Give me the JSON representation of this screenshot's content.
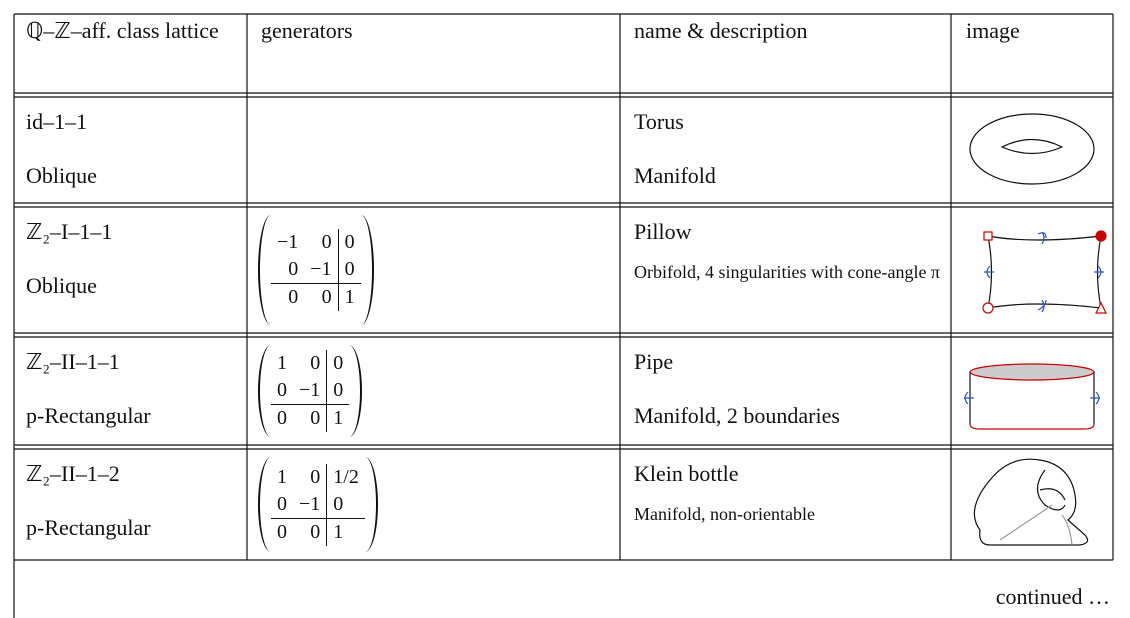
{
  "table": {
    "header": [
      "ℚ–ℤ–aff. class lattice",
      "generators",
      "name & description",
      "image"
    ],
    "rows": [
      {
        "class": "id–1–1",
        "lattice": "Oblique",
        "name": "Torus",
        "description": "Manifold"
      },
      {
        "class": "ℤ₂–I–1–1",
        "lattice": "Oblique",
        "generators": [
          [
            "−1",
            "0",
            "0"
          ],
          [
            "0",
            "−1",
            "0"
          ],
          [
            "0",
            "0",
            "1"
          ]
        ],
        "name": "Pillow",
        "description": "Orbifold, 4 singularities with cone-angle π"
      },
      {
        "class": "ℤ₂–II–1–1",
        "lattice": "p-Rectangular",
        "generators": [
          [
            "1",
            "0",
            "0"
          ],
          [
            "0",
            "−1",
            "0"
          ],
          [
            "0",
            "0",
            "1"
          ]
        ],
        "name": "Pipe",
        "description": "Manifold, 2 boundaries"
      },
      {
        "class": "ℤ₂–II–1–2",
        "lattice": "p-Rectangular",
        "generators": [
          [
            "1",
            "0",
            "1/2"
          ],
          [
            "0",
            "−1",
            "0"
          ],
          [
            "0",
            "0",
            "1"
          ]
        ],
        "name": "Klein bottle",
        "description": "Manifold, non-orientable"
      }
    ],
    "footer": "continued …"
  }
}
